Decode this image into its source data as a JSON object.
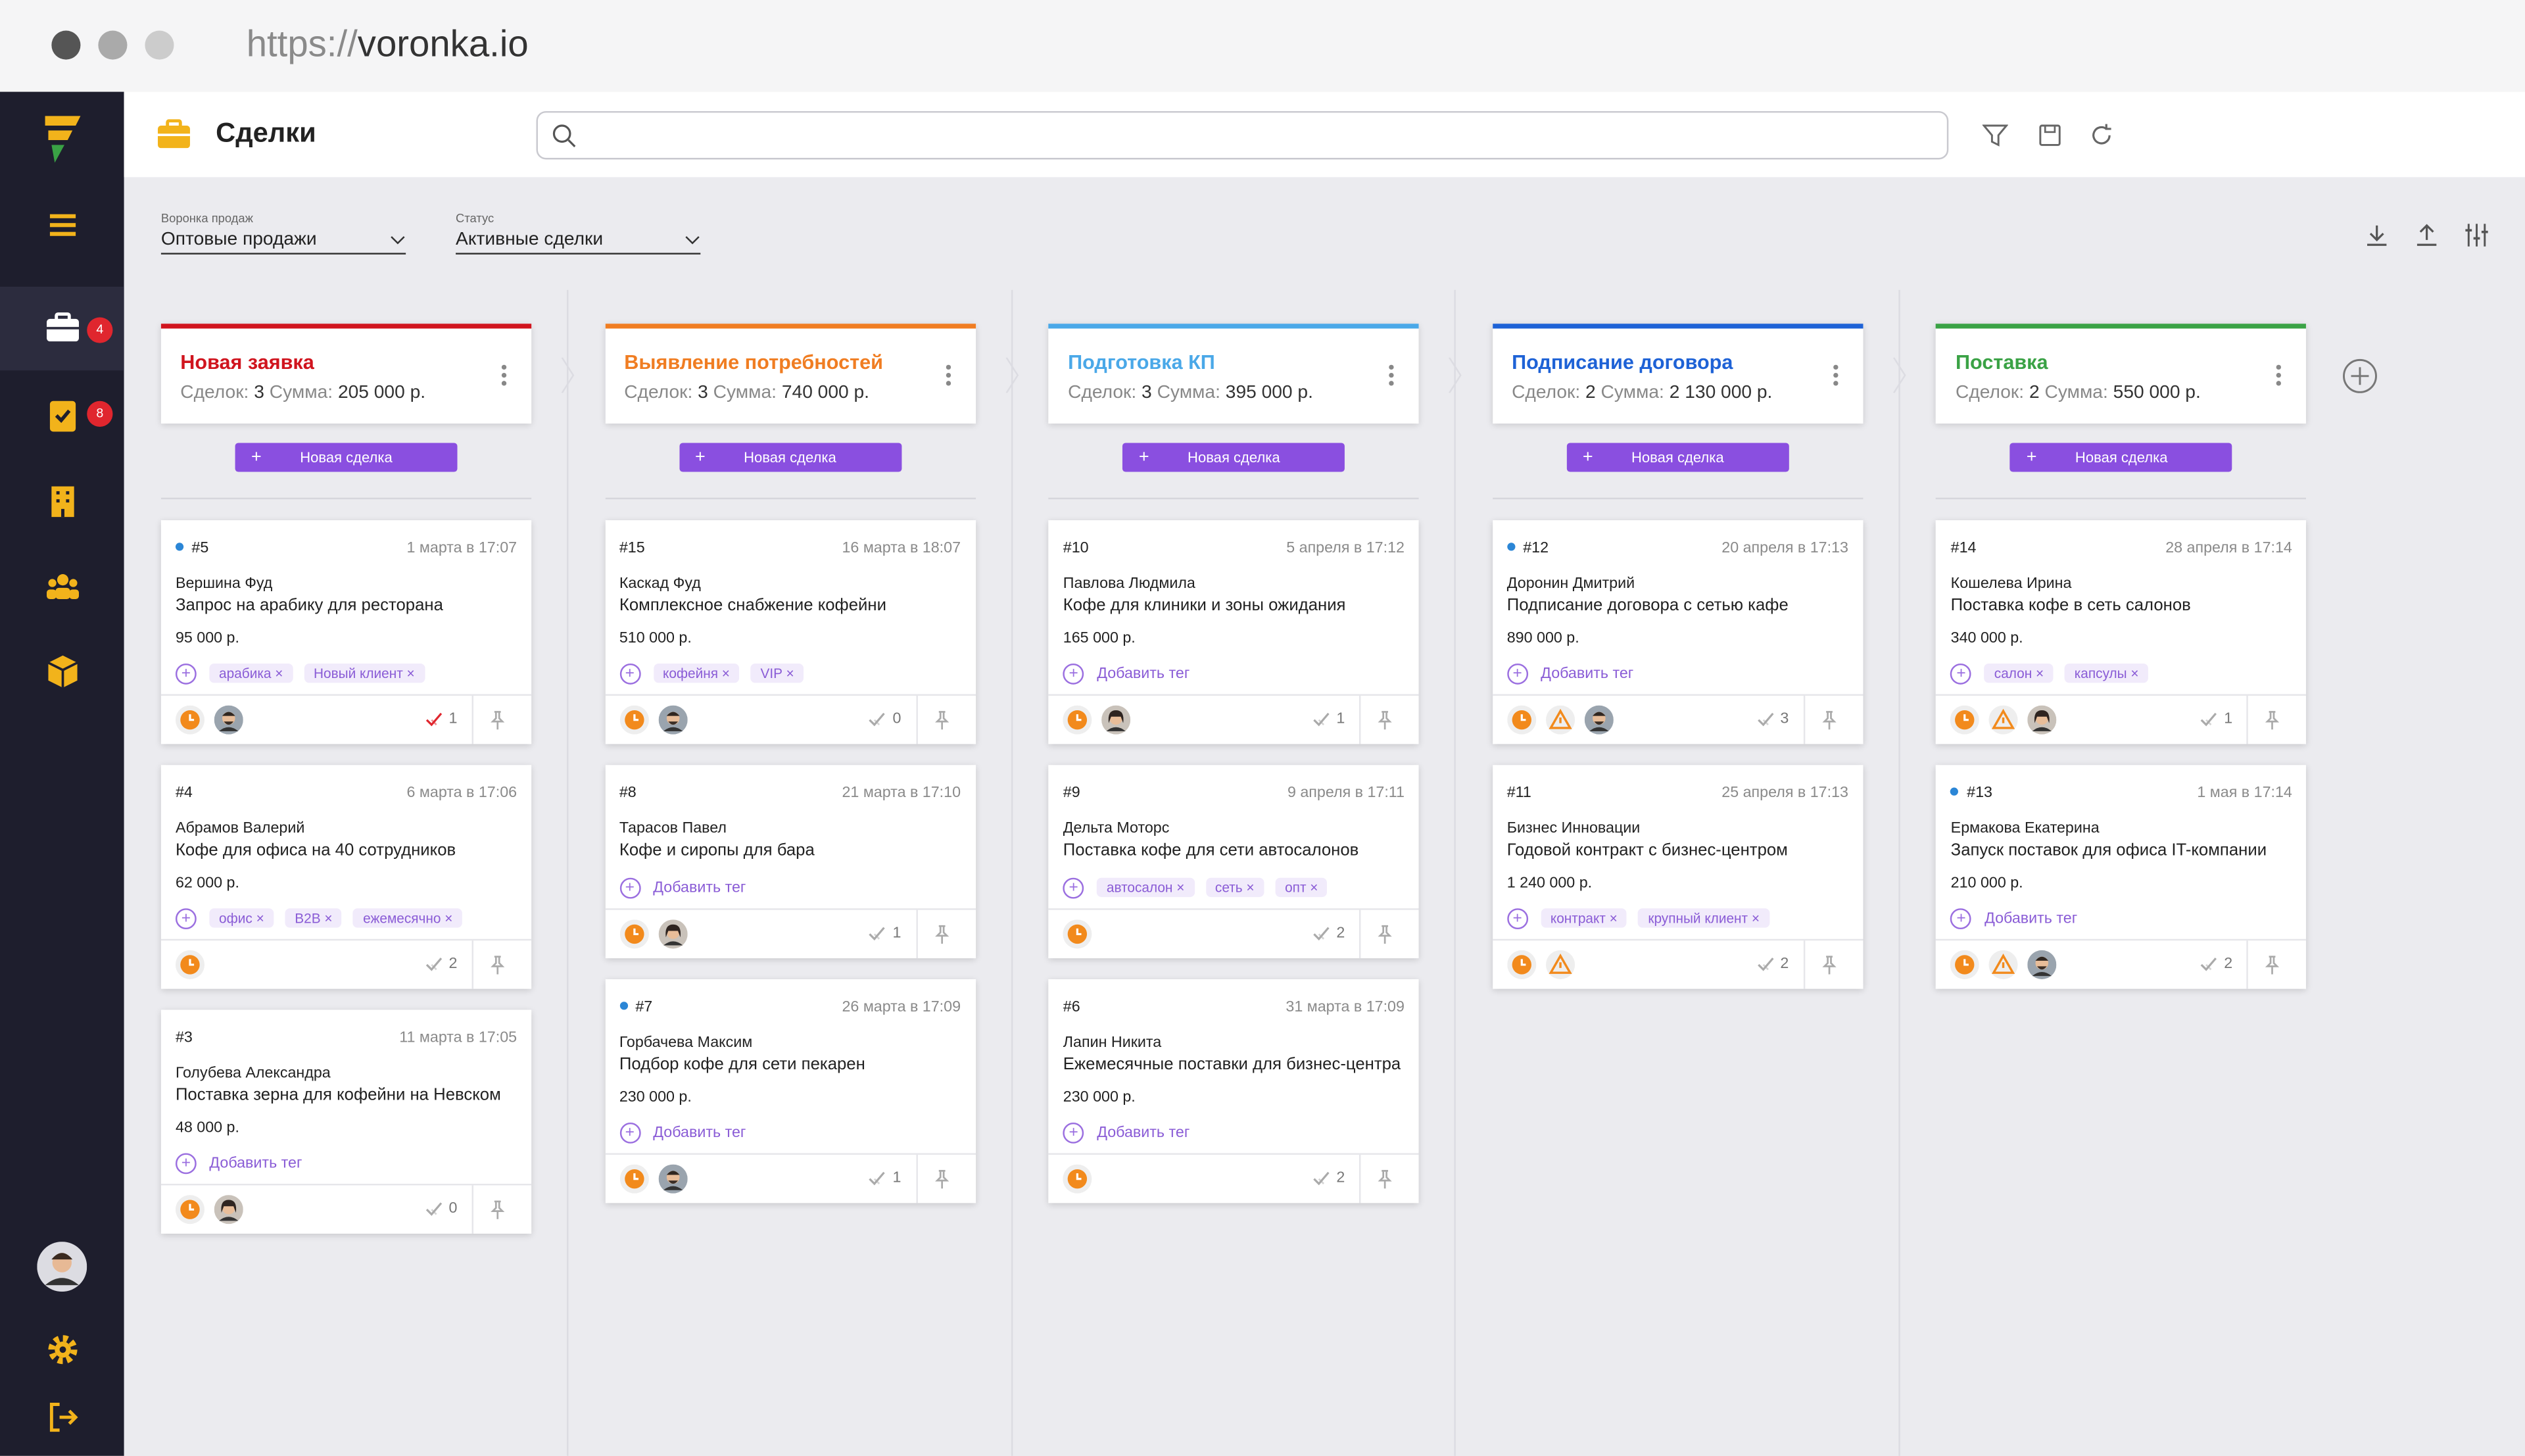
{
  "browser": {
    "url_scheme": "https://",
    "url_host": "voronka.io"
  },
  "sidebar": {
    "badges": [
      "4",
      "8"
    ]
  },
  "header": {
    "title": "Сделки"
  },
  "filters": [
    {
      "label": "Воронка продаж",
      "value": "Оптовые продажи"
    },
    {
      "label": "Статус",
      "value": "Активные сделки"
    }
  ],
  "labels": {
    "deals": "Сделок:",
    "sum": "Сумма:",
    "new_deal": "Новая сделка",
    "add_tag": "Добавить тег"
  },
  "columns": [
    {
      "title": "Новая заявка",
      "color": "#d0141e",
      "deals": "3",
      "sum": "205 000 р.",
      "cards": [
        {
          "id": "#5",
          "date": "1 марта в 17:07",
          "dot": true,
          "company": "Вершина Фуд",
          "title": "Запрос на арабику для ресторана",
          "amount": "95 000 р.",
          "tags": [
            "арабика",
            "Новый клиент"
          ],
          "warning": false,
          "avatar": "male",
          "checks": 1,
          "check_red": true
        },
        {
          "id": "#4",
          "date": "6 марта в 17:06",
          "dot": false,
          "company": "Абрамов Валерий",
          "title": "Кофе для офиса на 40 сотрудников",
          "amount": "62 000 р.",
          "tags": [
            "офис",
            "B2B",
            "ежемесячно"
          ],
          "warning": false,
          "avatar": null,
          "checks": 2,
          "check_red": false
        },
        {
          "id": "#3",
          "date": "11 марта в 17:05",
          "dot": false,
          "company": "Голубева Александра",
          "title": "Поставка зерна для кофейни на Невском",
          "amount": "48 000 р.",
          "tags": [],
          "warning": false,
          "avatar": "female",
          "checks": 0,
          "check_red": false
        }
      ]
    },
    {
      "title": "Выявление потребностей",
      "color": "#f07d22",
      "deals": "3",
      "sum": "740 000 р.",
      "cards": [
        {
          "id": "#15",
          "date": "16 марта в 18:07",
          "dot": false,
          "company": "Каскад Фуд",
          "title": "Комплексное снабжение кофейни",
          "amount": "510 000 р.",
          "tags": [
            "кофейня",
            "VIP"
          ],
          "warning": false,
          "avatar": "male",
          "checks": 0,
          "check_red": false
        },
        {
          "id": "#8",
          "date": "21 марта в 17:10",
          "dot": false,
          "company": "Тарасов Павел",
          "title": "Кофе и сиропы для бара",
          "amount": null,
          "tags": [],
          "warning": false,
          "avatar": "female",
          "checks": 1,
          "check_red": false
        },
        {
          "id": "#7",
          "date": "26 марта в 17:09",
          "dot": true,
          "company": "Горбачева Максим",
          "title": "Подбор кофе для сети пекарен",
          "amount": "230 000 р.",
          "tags": [],
          "warning": false,
          "avatar": "male",
          "checks": 1,
          "check_red": false
        }
      ]
    },
    {
      "title": "Подготовка КП",
      "color": "#4aa8e8",
      "deals": "3",
      "sum": "395 000 р.",
      "cards": [
        {
          "id": "#10",
          "date": "5 апреля в 17:12",
          "dot": false,
          "company": "Павлова Людмила",
          "title": "Кофе для клиники и зоны ожидания",
          "amount": "165 000 р.",
          "tags": [],
          "warning": false,
          "avatar": "female",
          "checks": 1,
          "check_red": false
        },
        {
          "id": "#9",
          "date": "9 апреля в 17:11",
          "dot": false,
          "company": "Дельта Моторс",
          "title": "Поставка кофе для сети автосалонов",
          "amount": null,
          "tags": [
            "автосалон",
            "сеть",
            "опт"
          ],
          "warning": false,
          "avatar": null,
          "checks": 2,
          "check_red": false
        },
        {
          "id": "#6",
          "date": "31 марта в 17:09",
          "dot": false,
          "company": "Лапин Никита",
          "title": "Ежемесячные поставки для бизнес-центра",
          "amount": "230 000 р.",
          "tags": [],
          "warning": false,
          "avatar": null,
          "checks": 2,
          "check_red": false
        }
      ]
    },
    {
      "title": "Подписание договора",
      "color": "#1e62d6",
      "deals": "2",
      "sum": "2 130 000 р.",
      "cards": [
        {
          "id": "#12",
          "date": "20 апреля в 17:13",
          "dot": true,
          "company": "Доронин Дмитрий",
          "title": "Подписание договора с сетью кафе",
          "amount": "890 000 р.",
          "tags": [],
          "warning": true,
          "avatar": "male",
          "checks": 3,
          "check_red": false
        },
        {
          "id": "#11",
          "date": "25 апреля в 17:13",
          "dot": false,
          "company": "Бизнес Инновации",
          "title": "Годовой контракт с бизнес-центром",
          "amount": "1 240 000 р.",
          "tags": [
            "контракт",
            "крупный клиент"
          ],
          "warning": true,
          "avatar": null,
          "checks": 2,
          "check_red": false
        }
      ]
    },
    {
      "title": "Поставка",
      "color": "#3aa245",
      "deals": "2",
      "sum": "550 000 р.",
      "cards": [
        {
          "id": "#14",
          "date": "28 апреля в 17:14",
          "dot": false,
          "company": "Кошелева Ирина",
          "title": "Поставка кофе в сеть салонов",
          "amount": "340 000 р.",
          "tags": [
            "салон",
            "капсулы"
          ],
          "warning": true,
          "avatar": "female",
          "checks": 1,
          "check_red": false
        },
        {
          "id": "#13",
          "date": "1 мая в 17:14",
          "dot": true,
          "company": "Ермакова Екатерина",
          "title": "Запуск поставок для офиса IT-компании",
          "amount": "210 000 р.",
          "tags": [],
          "warning": true,
          "avatar": "male",
          "checks": 2,
          "check_red": false
        }
      ]
    }
  ]
}
